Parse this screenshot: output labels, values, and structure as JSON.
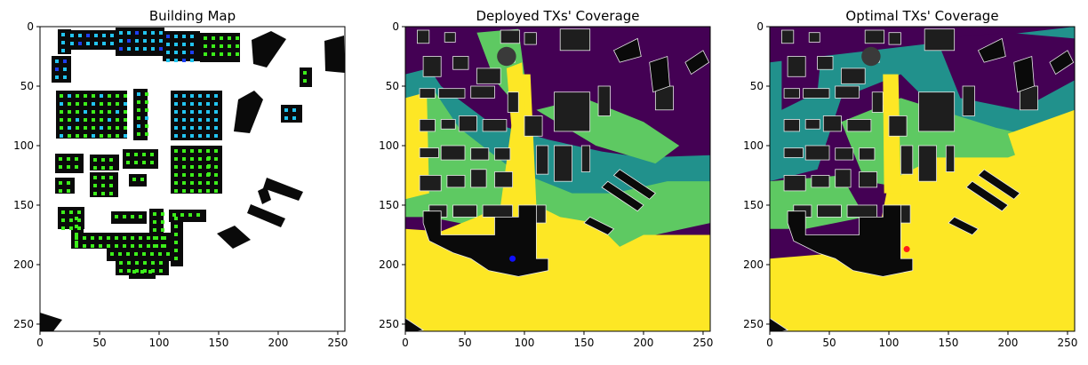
{
  "figure": {
    "panels": [
      {
        "id": "building",
        "title": "Building Map"
      },
      {
        "id": "deployed",
        "title": "Deployed TXs' Coverage"
      },
      {
        "id": "optimal",
        "title": "Optimal TXs' Coverage"
      }
    ]
  },
  "colors": {
    "background": "#ffffff",
    "building": "#0a0a0a",
    "building_shade": "#1e1e1e",
    "building_outline": "#e8e8e8",
    "dot_green": "#3cee1a",
    "dot_cyan": "#22c4f0",
    "dot_blue": "#1d3ff5",
    "cov_low": "#440154",
    "cov_midlow": "#21918c",
    "cov_mid": "#5ec962",
    "cov_high": "#fde725",
    "tx_deployed": "#1010ff",
    "tx_optimal": "#ff1a1a"
  },
  "chart_data": [
    {
      "type": "heatmap",
      "title": "Building Map",
      "xlim": [
        0,
        256
      ],
      "ylim": [
        256,
        0
      ],
      "xticks": [
        0,
        50,
        100,
        150,
        200,
        250
      ],
      "yticks": [
        0,
        50,
        100,
        150,
        200,
        250
      ],
      "legend": "none",
      "grid": false
    },
    {
      "type": "heatmap",
      "title": "Deployed TXs' Coverage",
      "xlim": [
        0,
        256
      ],
      "ylim": [
        256,
        0
      ],
      "xticks": [
        0,
        50,
        100,
        150,
        200,
        250
      ],
      "yticks": [
        0,
        50,
        100,
        150,
        200,
        250
      ],
      "colormap": "viridis",
      "tx_marker": {
        "x": 90,
        "y": 195,
        "color": "blue"
      },
      "legend": "none",
      "grid": false
    },
    {
      "type": "heatmap",
      "title": "Optimal TXs' Coverage",
      "xlim": [
        0,
        256
      ],
      "ylim": [
        256,
        0
      ],
      "xticks": [
        0,
        50,
        100,
        150,
        200,
        250
      ],
      "yticks": [
        0,
        50,
        100,
        150,
        200,
        250
      ],
      "colormap": "viridis",
      "tx_marker": {
        "x": 115,
        "y": 187,
        "color": "red"
      },
      "legend": "none",
      "grid": false
    }
  ]
}
